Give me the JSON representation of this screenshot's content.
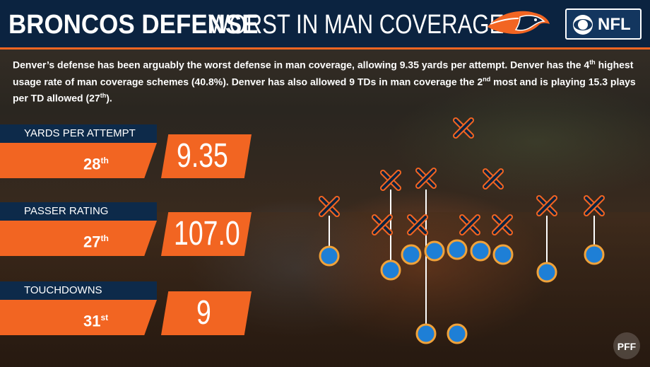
{
  "header": {
    "title_bold": "BRONCOS DEFENSE",
    "title_light": "WORST IN MAN COVERAGE",
    "network_logo_text": "NFL",
    "team_logo_icon": "broncos-horse-logo",
    "network_eye_icon": "cbs-eye-logo"
  },
  "description": {
    "p1": "Denver’s defense has been arguably the worst defense in man coverage, allowing 9.35 yards per attempt. Denver has the 4",
    "s1": "th",
    "p2": " highest usage rate of man coverage schemes (40.8%). Denver has also allowed 9 TDs in man coverage the 2",
    "s2": "nd",
    "p3": " most and is playing 15.3 plays per TD allowed (27",
    "s3": "th",
    "p4": ")."
  },
  "stats": [
    {
      "label": "YARDS PER ATTEMPT",
      "rank": "28",
      "rank_suffix": "th",
      "value": "9.35"
    },
    {
      "label": "PASSER RATING",
      "rank": "27",
      "rank_suffix": "th",
      "value": "107.0"
    },
    {
      "label": "TOUCHDOWNS",
      "rank": "31",
      "rank_suffix": "st",
      "value": "9"
    }
  ],
  "footer": {
    "brand_logo_icon": "pff-logo"
  },
  "colors": {
    "navy": "#0b2340",
    "orange": "#f26522",
    "player_blue": "#1e7fd6",
    "player_outline": "#f0a23a"
  }
}
